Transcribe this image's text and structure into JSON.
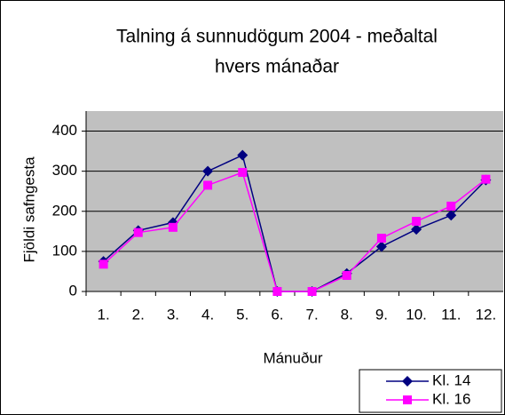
{
  "chart_data": {
    "type": "line",
    "title": "Talning á sunnudögum 2004 - meðaltal",
    "subtitle": "hvers mánaðar",
    "x_label": "Mánuður",
    "y_label": "Fjöldi safngesta",
    "categories": [
      "1.",
      "2.",
      "3.",
      "4.",
      "5.",
      "6.",
      "7.",
      "8.",
      "9.",
      "10.",
      "11.",
      "12."
    ],
    "series": [
      {
        "name": "Kl. 14",
        "color": "#000080",
        "marker": "diamond",
        "values": [
          75,
          152,
          172,
          300,
          340,
          0,
          0,
          45,
          112,
          155,
          190,
          278
        ]
      },
      {
        "name": "Kl. 16",
        "color": "#ff00ff",
        "marker": "square",
        "values": [
          68,
          147,
          160,
          265,
          297,
          0,
          0,
          40,
          133,
          175,
          213,
          280
        ]
      }
    ],
    "ylim": [
      0,
      450
    ],
    "yticks": [
      0,
      100,
      200,
      300,
      400
    ],
    "grid": true,
    "legend": "lower right"
  }
}
